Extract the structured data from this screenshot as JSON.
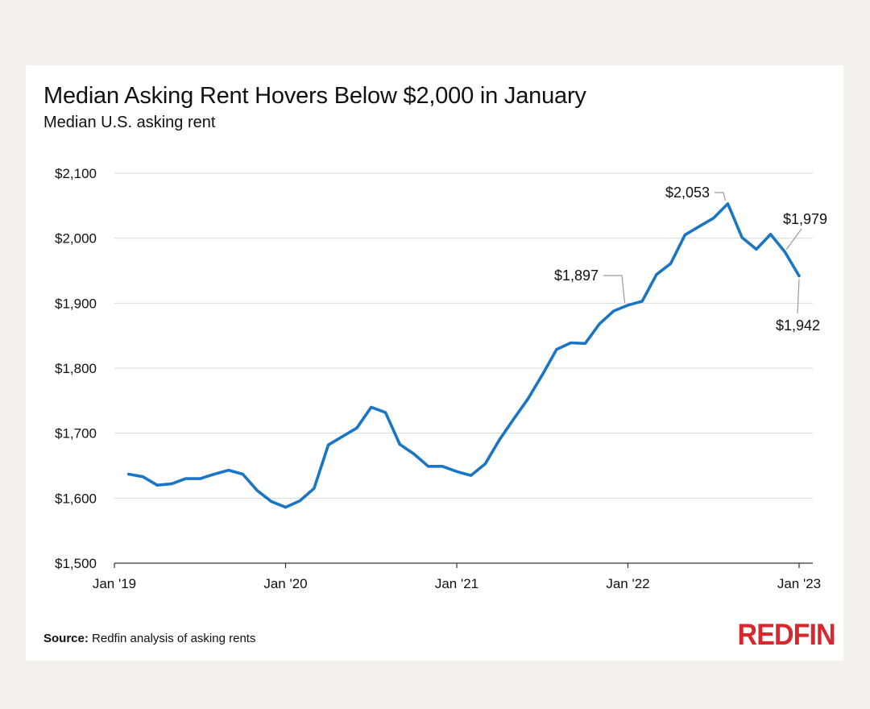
{
  "header": {
    "title": "Median Asking Rent Hovers Below $2,000 in January",
    "subtitle": "Median U.S. asking rent"
  },
  "footer": {
    "source_label": "Source:",
    "source_text": "Redfin analysis of asking rents",
    "logo_text": "REDFIN"
  },
  "colors": {
    "line": "#1a75c4",
    "grid": "#d9d9d9",
    "axis": "#333333",
    "callout": "#9a9a9a",
    "logo": "#d8272d"
  },
  "chart_data": {
    "type": "line",
    "title": "Median Asking Rent Hovers Below $2,000 in January",
    "subtitle": "Median U.S. asking rent",
    "xlabel": "",
    "ylabel": "",
    "ylim": [
      1500,
      2100
    ],
    "yticks": [
      1500,
      1600,
      1700,
      1800,
      1900,
      2000,
      2100
    ],
    "ytick_labels": [
      "$1,500",
      "$1,600",
      "$1,700",
      "$1,800",
      "$1,900",
      "$2,000",
      "$2,100"
    ],
    "xticks": [
      "2019-01",
      "2020-01",
      "2021-01",
      "2022-01",
      "2023-01"
    ],
    "xtick_labels": [
      "Jan '19",
      "Jan '20",
      "Jan '21",
      "Jan '22",
      "Jan '23"
    ],
    "grid": true,
    "series": [
      {
        "x": [
          "2019-02",
          "2019-03",
          "2019-04",
          "2019-05",
          "2019-06",
          "2019-07",
          "2019-08",
          "2019-09",
          "2019-10",
          "2019-11",
          "2019-12",
          "2020-01",
          "2020-02",
          "2020-03",
          "2020-04",
          "2020-05",
          "2020-06",
          "2020-07",
          "2020-08",
          "2020-09",
          "2020-10",
          "2020-11",
          "2020-12",
          "2021-01",
          "2021-02",
          "2021-03",
          "2021-04",
          "2021-05",
          "2021-06",
          "2021-07",
          "2021-08",
          "2021-09",
          "2021-10",
          "2021-11",
          "2021-12",
          "2022-01",
          "2022-02",
          "2022-03",
          "2022-04",
          "2022-05",
          "2022-06",
          "2022-07",
          "2022-08",
          "2022-09",
          "2022-10",
          "2022-11",
          "2022-12",
          "2023-01"
        ],
        "values": [
          1637,
          1633,
          1620,
          1622,
          1630,
          1630,
          1637,
          1643,
          1637,
          1612,
          1595,
          1586,
          1596,
          1615,
          1682,
          1695,
          1708,
          1740,
          1732,
          1683,
          1668,
          1649,
          1649,
          1641,
          1635,
          1653,
          1690,
          1722,
          1753,
          1790,
          1829,
          1839,
          1838,
          1868,
          1888,
          1897,
          1903,
          1944,
          1961,
          2005,
          2018,
          2031,
          2053,
          2001,
          1983,
          2006,
          1979,
          1942
        ]
      }
    ],
    "annotations": [
      {
        "x": "2022-01",
        "value": 1897,
        "label": "$1,897"
      },
      {
        "x": "2022-08",
        "value": 2053,
        "label": "$2,053"
      },
      {
        "x": "2022-12",
        "value": 1979,
        "label": "$1,979"
      },
      {
        "x": "2023-01",
        "value": 1942,
        "label": "$1,942"
      }
    ]
  }
}
